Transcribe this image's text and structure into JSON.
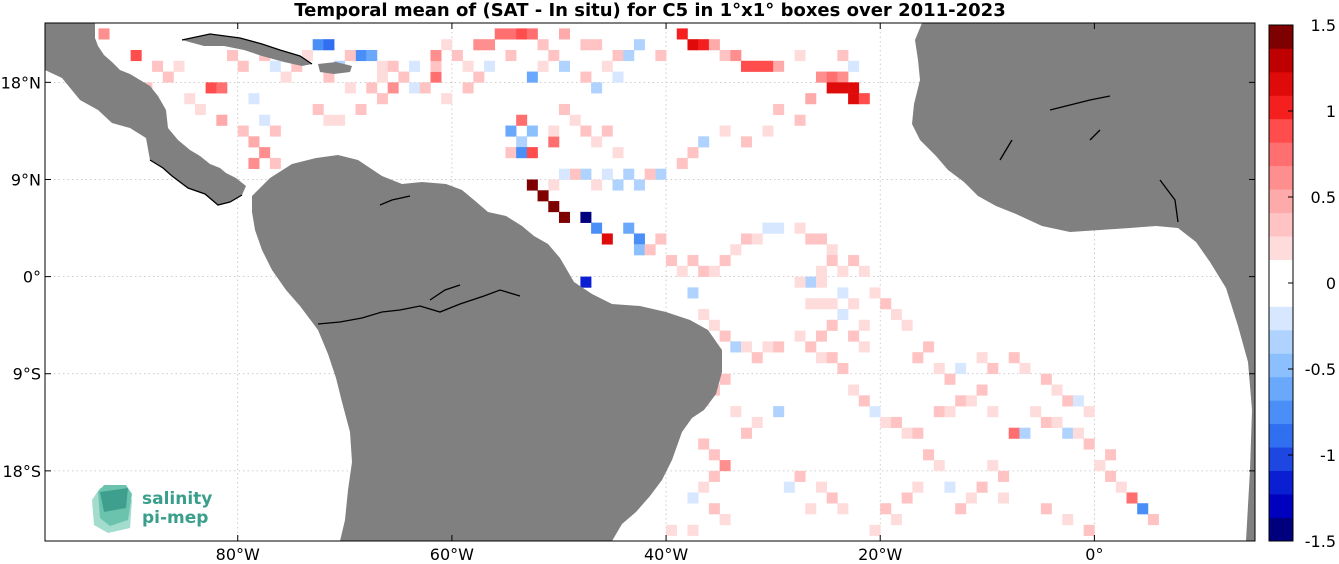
{
  "chart_data": {
    "type": "heatmap",
    "title": "Temporal mean of (SAT - In situ) for C5 in 1°x1° boxes over 2011-2023",
    "xlim": [
      -98,
      15
    ],
    "ylim": [
      -24.5,
      23.5
    ],
    "grid": true,
    "x_ticks": [
      {
        "value": -80,
        "label": "80°W"
      },
      {
        "value": -60,
        "label": "60°W"
      },
      {
        "value": -40,
        "label": "40°W"
      },
      {
        "value": -20,
        "label": "20°W"
      },
      {
        "value": 0,
        "label": "0°"
      }
    ],
    "y_ticks": [
      {
        "value": 18,
        "label": "18°N"
      },
      {
        "value": 9,
        "label": "9°N"
      },
      {
        "value": 0,
        "label": "0°"
      },
      {
        "value": -9,
        "label": "9°S"
      },
      {
        "value": -18,
        "label": "18°S"
      }
    ],
    "colorbar": {
      "min": -1.5,
      "max": 1.5,
      "ticks": [
        {
          "value": 1.5,
          "label": "1.5"
        },
        {
          "value": 1,
          "label": "1"
        },
        {
          "value": 0.5,
          "label": "0.5"
        },
        {
          "value": 0,
          "label": "0"
        },
        {
          "value": -0.5,
          "label": "-0.5"
        },
        {
          "value": -1,
          "label": "-1"
        },
        {
          "value": -1.5,
          "label": "-1.5"
        }
      ],
      "palette": [
        "#00007f",
        "#0000bf",
        "#0a1ed2",
        "#1e46e1",
        "#2f6ff0",
        "#4a8ef7",
        "#6aa8fb",
        "#8cbffd",
        "#afd3fe",
        "#d6e7ff",
        "#ffffff",
        "#ffffff",
        "#ffdcdc",
        "#ffc3c3",
        "#ffaaaa",
        "#ff8f8f",
        "#ff6f6f",
        "#ff4c4c",
        "#f51f1f",
        "#df0a0a",
        "#bf0000",
        "#7f0000"
      ]
    },
    "cells": [
      [
        -96,
        22,
        0.9
      ],
      [
        -95,
        22,
        0.9
      ],
      [
        -93,
        22,
        0.6
      ],
      [
        -90,
        20,
        0.9
      ],
      [
        -92,
        18,
        0.2
      ],
      [
        -91,
        17,
        0.2
      ],
      [
        -89,
        17,
        0.3
      ],
      [
        -88,
        19,
        0.3
      ],
      [
        -87,
        18,
        0.3
      ],
      [
        -86,
        19,
        0.2
      ],
      [
        -85,
        16,
        0.2
      ],
      [
        -84,
        15,
        0.2
      ],
      [
        -83,
        17,
        0.9
      ],
      [
        -82,
        17,
        0.7
      ],
      [
        -81,
        20,
        0.3
      ],
      [
        -80,
        19,
        0.3
      ],
      [
        -82,
        14,
        0.5
      ],
      [
        -80,
        13,
        0.4
      ],
      [
        -79,
        12,
        0.5
      ],
      [
        -78,
        11,
        0.6
      ],
      [
        -79,
        10,
        0.6
      ],
      [
        -77,
        10,
        0.3
      ],
      [
        -79,
        16,
        -0.2
      ],
      [
        -78,
        14,
        -0.2
      ],
      [
        -77,
        13,
        0.4
      ],
      [
        -73,
        15,
        0.4
      ],
      [
        -72,
        14,
        0.2
      ],
      [
        -71,
        14,
        0.2
      ],
      [
        -69,
        15,
        0.3
      ],
      [
        -67,
        16,
        0.4
      ],
      [
        -66,
        17,
        0.6
      ],
      [
        -64,
        17,
        -0.2
      ],
      [
        -63,
        17,
        0.3
      ],
      [
        -62,
        18,
        0.7
      ],
      [
        -61,
        16,
        0.2
      ],
      [
        -59,
        17,
        0.3
      ],
      [
        -58,
        18,
        0.3
      ],
      [
        -73,
        21,
        -0.8
      ],
      [
        -72,
        21,
        -0.9
      ],
      [
        -69,
        20,
        -0.7
      ],
      [
        -68,
        20,
        -0.6
      ],
      [
        -67,
        19,
        0.2
      ],
      [
        -66,
        19,
        0.3
      ],
      [
        -65,
        18,
        0.3
      ],
      [
        -70,
        20,
        0.3
      ],
      [
        -64,
        19,
        -0.2
      ],
      [
        -62,
        19,
        0.4
      ],
      [
        -62,
        20,
        0.6
      ],
      [
        -61,
        21,
        0.2
      ],
      [
        -60,
        20,
        0.3
      ],
      [
        -58,
        21,
        0.6
      ],
      [
        -57,
        21,
        0.6
      ],
      [
        -56,
        22,
        0.8
      ],
      [
        -55,
        22,
        0.7
      ],
      [
        -54,
        22,
        0.9
      ],
      [
        -53,
        22,
        0.7
      ],
      [
        -52,
        21,
        0.3
      ],
      [
        -50,
        22,
        0.5
      ],
      [
        -48,
        21,
        0.4
      ],
      [
        -47,
        21,
        0.3
      ],
      [
        -45,
        20,
        0.3
      ],
      [
        -43,
        21,
        -0.4
      ],
      [
        -41,
        20,
        0.3
      ],
      [
        -39,
        22,
        1.0
      ],
      [
        -38,
        21,
        1.1
      ],
      [
        -37,
        21,
        1.0
      ],
      [
        -36,
        21,
        0.5
      ],
      [
        -35,
        20,
        0.4
      ],
      [
        -34,
        20,
        0.6
      ],
      [
        -33,
        19,
        0.9
      ],
      [
        -32,
        19,
        0.9
      ],
      [
        -31,
        19,
        0.9
      ],
      [
        -30,
        19,
        0.5
      ],
      [
        -28,
        20,
        0.2
      ],
      [
        -26,
        18,
        0.6
      ],
      [
        -25,
        18,
        0.7
      ],
      [
        -24,
        18,
        0.6
      ],
      [
        -25,
        17,
        1.1
      ],
      [
        -24,
        17,
        1.1
      ],
      [
        -23,
        17,
        1.2
      ],
      [
        -23,
        16,
        1.1
      ],
      [
        -22,
        16,
        0.9
      ],
      [
        -24,
        20,
        0.3
      ],
      [
        -23,
        19,
        -0.2
      ],
      [
        -27,
        16,
        0.5
      ],
      [
        -28,
        14,
        0.4
      ],
      [
        -30,
        15,
        0.3
      ],
      [
        -31,
        13,
        0.2
      ],
      [
        -33,
        12,
        0.3
      ],
      [
        -35,
        13,
        0.2
      ],
      [
        -37,
        12,
        -0.3
      ],
      [
        -38,
        11,
        0.3
      ],
      [
        -39,
        10,
        0.3
      ],
      [
        -41,
        9,
        -0.3
      ],
      [
        -42,
        9,
        0.3
      ],
      [
        -43,
        8,
        -0.4
      ],
      [
        -44,
        9,
        -0.3
      ],
      [
        -45,
        8,
        -0.4
      ],
      [
        -46,
        9,
        -0.2
      ],
      [
        -47,
        8,
        0.2
      ],
      [
        -48,
        9,
        -0.3
      ],
      [
        -49,
        9,
        0.3
      ],
      [
        -50,
        9,
        -0.2
      ],
      [
        -51,
        8,
        0.2
      ],
      [
        -55,
        13,
        -0.6
      ],
      [
        -54,
        14,
        0.7
      ],
      [
        -53,
        13,
        -0.5
      ],
      [
        -54,
        12,
        -0.3
      ],
      [
        -55,
        11,
        0.4
      ],
      [
        -54,
        11,
        -0.7
      ],
      [
        -53,
        11,
        0.9
      ],
      [
        -51,
        12,
        0.8
      ],
      [
        -51,
        13,
        0.2
      ],
      [
        -50,
        15,
        0.3
      ],
      [
        -49,
        14,
        0.2
      ],
      [
        -48,
        13,
        0.3
      ],
      [
        -47,
        12,
        0.2
      ],
      [
        -46,
        13,
        0.3
      ],
      [
        -45,
        11,
        0.2
      ],
      [
        -53,
        8,
        1.4
      ],
      [
        -52,
        7,
        1.4
      ],
      [
        -51,
        6,
        1.5
      ],
      [
        -50,
        5,
        1.4
      ],
      [
        -48,
        5,
        -1.5
      ],
      [
        -47,
        4,
        -0.7
      ],
      [
        -46,
        3,
        1.2
      ],
      [
        -44,
        4,
        -0.6
      ],
      [
        -43,
        3,
        -0.7
      ],
      [
        -43,
        2,
        -0.5
      ],
      [
        -42,
        2,
        0.3
      ],
      [
        -41,
        3,
        0.3
      ],
      [
        -40,
        1,
        0.3
      ],
      [
        -39,
        0,
        0.2
      ],
      [
        -38,
        1,
        0.3
      ],
      [
        -37,
        0,
        0.3
      ],
      [
        -36,
        0,
        0.2
      ],
      [
        -35,
        1,
        0.3
      ],
      [
        -34,
        2,
        0.2
      ],
      [
        -33,
        3,
        0.3
      ],
      [
        -32,
        3,
        0.2
      ],
      [
        -31,
        4,
        -0.2
      ],
      [
        -30,
        4,
        -0.2
      ],
      [
        -28,
        4,
        0.2
      ],
      [
        -27,
        3,
        0.3
      ],
      [
        -26,
        3,
        0.3
      ],
      [
        -25,
        2,
        0.2
      ],
      [
        -27,
        -1,
        -0.3
      ],
      [
        -28,
        -1,
        0.2
      ],
      [
        -26,
        0,
        0.2
      ],
      [
        -25,
        1,
        0.3
      ],
      [
        -24,
        0,
        0.2
      ],
      [
        -23,
        1,
        0.3
      ],
      [
        -22,
        0,
        0.2
      ],
      [
        -26,
        -1,
        0.2
      ],
      [
        -27,
        -3,
        0.2
      ],
      [
        -26,
        -3,
        0.2
      ],
      [
        -25,
        -3,
        0.2
      ],
      [
        -24,
        -2,
        -0.2
      ],
      [
        -23,
        -3,
        0.2
      ],
      [
        -48,
        -1,
        -1.1
      ],
      [
        -38,
        -2,
        -0.3
      ],
      [
        -37,
        -4,
        0.2
      ],
      [
        -36,
        -5,
        0.2
      ],
      [
        -35,
        -6,
        0.3
      ],
      [
        -34,
        -7,
        -0.3
      ],
      [
        -33,
        -7,
        0.2
      ],
      [
        -32,
        -8,
        0.3
      ],
      [
        -31,
        -7,
        0.2
      ],
      [
        -30,
        -7,
        0.3
      ],
      [
        -28,
        -6,
        0.2
      ],
      [
        -27,
        -7,
        0.3
      ],
      [
        -26,
        -8,
        0.2
      ],
      [
        -25,
        -8,
        0.3
      ],
      [
        -24,
        -9,
        0.3
      ],
      [
        -23,
        -11,
        0.2
      ],
      [
        -22,
        -12,
        0.3
      ],
      [
        -21,
        -13,
        -0.2
      ],
      [
        -20,
        -14,
        0.2
      ],
      [
        -19,
        -14,
        0.3
      ],
      [
        -18,
        -15,
        0.2
      ],
      [
        -17,
        -15,
        0.3
      ],
      [
        -15,
        -13,
        0.3
      ],
      [
        -14,
        -13,
        0.2
      ],
      [
        -13,
        -12,
        0.3
      ],
      [
        -12,
        -12,
        0.2
      ],
      [
        -11,
        -11,
        0.3
      ],
      [
        -10,
        -13,
        0.2
      ],
      [
        -8,
        -15,
        0.8
      ],
      [
        -7,
        -15,
        -0.3
      ],
      [
        -6,
        -13,
        0.2
      ],
      [
        -5,
        -14,
        0.3
      ],
      [
        -4,
        -14,
        0.2
      ],
      [
        -3,
        -15,
        -0.3
      ],
      [
        -2,
        -15,
        0.2
      ],
      [
        -1,
        -16,
        0.3
      ],
      [
        0,
        -18,
        0.2
      ],
      [
        1,
        -19,
        0.3
      ],
      [
        2,
        -20,
        0.2
      ],
      [
        3,
        -21,
        0.7
      ],
      [
        4,
        -22,
        -0.7
      ],
      [
        5,
        -23,
        0.3
      ],
      [
        -30,
        -13,
        -0.3
      ],
      [
        -32,
        -14,
        0.2
      ],
      [
        -33,
        -15,
        0.3
      ],
      [
        -34,
        -13,
        0.2
      ],
      [
        -35,
        -10,
        0.4
      ],
      [
        -36,
        -11,
        0.3
      ],
      [
        -37,
        -12,
        0.2
      ],
      [
        -37,
        -16,
        0.3
      ],
      [
        -36,
        -17,
        0.4
      ],
      [
        -35,
        -18,
        0.6
      ],
      [
        -36,
        -19,
        0.3
      ],
      [
        -37,
        -20,
        0.2
      ],
      [
        -38,
        -21,
        -0.2
      ],
      [
        -36,
        -22,
        0.3
      ],
      [
        -35,
        -23,
        0.2
      ],
      [
        -38,
        -24,
        0.2
      ],
      [
        -40,
        -24,
        0.2
      ],
      [
        -28,
        -19,
        0.3
      ],
      [
        -26,
        -20,
        0.2
      ],
      [
        -25,
        -21,
        0.3
      ],
      [
        -24,
        -22,
        0.2
      ],
      [
        -27,
        -22,
        0.2
      ],
      [
        -29,
        -20,
        -0.2
      ],
      [
        -16,
        -7,
        0.3
      ],
      [
        -18,
        -5,
        0.2
      ],
      [
        -19,
        -4,
        0.2
      ],
      [
        -20,
        -3,
        0.3
      ],
      [
        -21,
        -2,
        0.2
      ],
      [
        -17,
        -8,
        0.3
      ],
      [
        -15,
        -9,
        0.2
      ],
      [
        -14,
        -10,
        0.3
      ],
      [
        -13,
        -9,
        -0.2
      ],
      [
        -11,
        -8,
        0.2
      ],
      [
        -10,
        -9,
        0.3
      ],
      [
        -8,
        -8,
        0.3
      ],
      [
        -7,
        -9,
        0.2
      ],
      [
        -5,
        -10,
        0.3
      ],
      [
        -4,
        -11,
        0.2
      ],
      [
        -3,
        -12,
        0.3
      ],
      [
        -2,
        -12,
        -0.2
      ],
      [
        -1,
        -13,
        0.2
      ],
      [
        1,
        -17,
        0.3
      ],
      [
        -9,
        -19,
        0.3
      ],
      [
        -10,
        -18,
        0.2
      ],
      [
        -11,
        -20,
        0.3
      ],
      [
        -12,
        -21,
        0.2
      ],
      [
        -13,
        -22,
        0.3
      ],
      [
        -14,
        -20,
        -0.2
      ],
      [
        -15,
        -18,
        0.2
      ],
      [
        -16,
        -17,
        0.3
      ],
      [
        -17,
        -20,
        0.2
      ],
      [
        -18,
        -21,
        0.3
      ],
      [
        -19,
        -23,
        0.2
      ],
      [
        -20,
        -22,
        0.3
      ],
      [
        -21,
        -24,
        0.2
      ],
      [
        -9,
        -21,
        0.2
      ],
      [
        -5,
        -22,
        0.3
      ],
      [
        -3,
        -23,
        0.2
      ],
      [
        -1,
        -24,
        0.3
      ],
      [
        -22,
        -7,
        0.2
      ],
      [
        -23,
        -6,
        0.3
      ],
      [
        -22,
        -5,
        0.2
      ],
      [
        -24,
        -4,
        -0.2
      ],
      [
        -25,
        -5,
        0.3
      ],
      [
        -26,
        -6,
        0.3
      ],
      [
        -44,
        20,
        -0.3
      ],
      [
        -45,
        18,
        -0.2
      ],
      [
        -46,
        19,
        0.2
      ],
      [
        -47,
        17,
        -0.3
      ],
      [
        -48,
        18,
        0.3
      ],
      [
        -50,
        19,
        -0.4
      ],
      [
        -51,
        20,
        0.3
      ],
      [
        -52,
        19,
        0.2
      ],
      [
        -53,
        18,
        -0.6
      ],
      [
        -55,
        20,
        0.3
      ],
      [
        -57,
        19,
        -0.2
      ],
      [
        -59,
        19,
        0.2
      ],
      [
        -75,
        19,
        0.3
      ],
      [
        -76,
        18,
        0.2
      ],
      [
        -77,
        19,
        -0.2
      ],
      [
        -78,
        20,
        0.3
      ],
      [
        -74,
        20,
        0.2
      ],
      [
        -72,
        18,
        0.3
      ],
      [
        -71,
        19,
        -0.3
      ],
      [
        -70,
        17,
        0.2
      ],
      [
        -68,
        17,
        0.3
      ],
      [
        -67,
        18,
        0.2
      ]
    ]
  },
  "logo": {
    "line1": "salinity",
    "line2": "pi-mep"
  },
  "colors": {
    "land": "#808080",
    "coast": "#000000",
    "grid": "#bfbfbf"
  }
}
